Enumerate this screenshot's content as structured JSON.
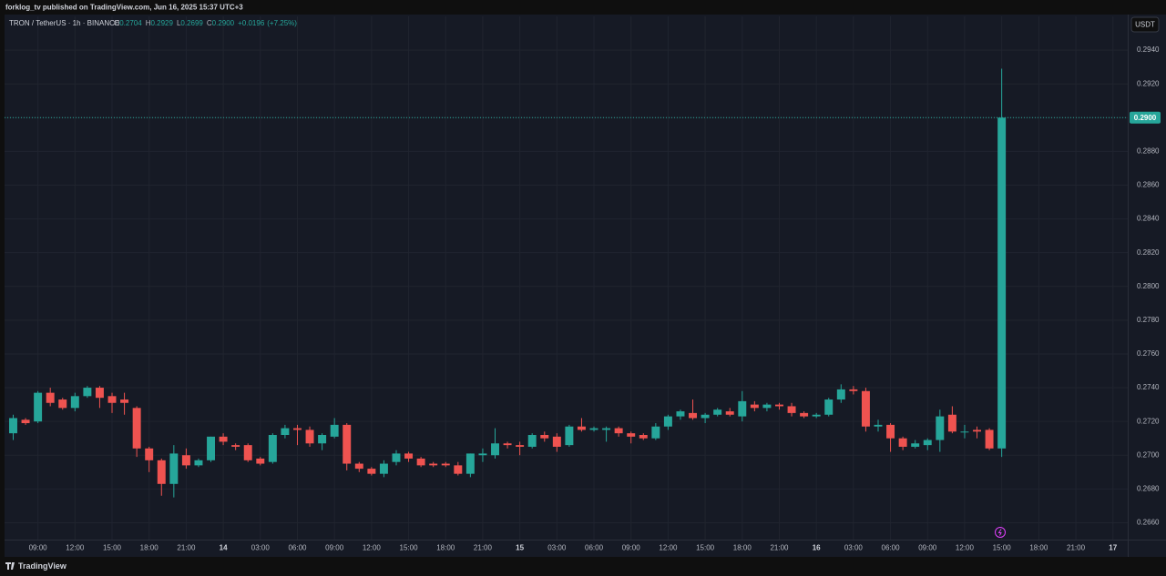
{
  "header": {
    "published": "forklog_tv published on TradingView.com, Jun 16, 2025 15:37 UTC+3"
  },
  "footer": {
    "brand": "TradingView"
  },
  "chart_data": {
    "type": "candlestick",
    "title": "TRON / TetherUS · 1h · BINANCE",
    "currency": "USDT",
    "legend": {
      "open_label": "O",
      "open": "0.2704",
      "high_label": "H",
      "high": "0.2929",
      "low_label": "L",
      "low": "0.2699",
      "close_label": "C",
      "close": "0.2900",
      "change": "+0.0196",
      "change_percent": "(+7.25%)"
    },
    "up_color": "#26a69a",
    "down_color": "#ef5350",
    "grid": true,
    "x": [
      -17,
      -16,
      -15,
      -14,
      -13,
      -12,
      -11,
      -10,
      -9,
      -8,
      -7,
      -6,
      -5,
      -4,
      -3,
      -2,
      -1,
      0,
      1,
      2,
      3,
      4,
      5,
      6,
      7,
      8,
      9,
      10,
      11,
      12,
      13,
      14,
      15,
      16,
      17,
      18,
      19,
      20,
      21,
      22,
      23,
      24,
      25,
      26,
      27,
      28,
      29,
      30,
      31,
      32,
      33,
      34,
      35,
      36,
      37,
      38,
      39,
      40,
      41,
      42,
      43,
      44,
      45,
      46,
      47,
      48,
      49,
      50,
      51,
      52,
      53,
      54,
      55,
      56,
      57,
      58,
      59,
      60,
      61,
      62,
      63
    ],
    "open": [
      0.2713,
      0.2721,
      0.272,
      0.2737,
      0.2733,
      0.2728,
      0.2735,
      0.274,
      0.2735,
      0.2733,
      0.2728,
      0.2704,
      0.2697,
      0.2683,
      0.27,
      0.2694,
      0.2697,
      0.2711,
      0.2706,
      0.2706,
      0.2698,
      0.2696,
      0.2712,
      0.2716,
      0.2715,
      0.2707,
      0.2711,
      0.2718,
      0.2695,
      0.2692,
      0.2689,
      0.2696,
      0.2701,
      0.2698,
      0.2695,
      0.2695,
      0.2694,
      0.2689,
      0.27,
      0.27,
      0.2707,
      0.2706,
      0.2705,
      0.2712,
      0.2711,
      0.2706,
      0.2717,
      0.2715,
      0.2715,
      0.2716,
      0.2713,
      0.2712,
      0.271,
      0.2717,
      0.2723,
      0.2725,
      0.2722,
      0.2724,
      0.2726,
      0.2723,
      0.273,
      0.2728,
      0.273,
      0.2729,
      0.2725,
      0.2723,
      0.2724,
      0.2733,
      0.2739,
      0.2738,
      0.2717,
      0.2718,
      0.271,
      0.2705,
      0.2706,
      0.2709,
      0.2724,
      0.2714,
      0.2715,
      0.2715,
      0.2704
    ],
    "high": [
      0.2724,
      0.2722,
      0.2738,
      0.274,
      0.2734,
      0.2737,
      0.2741,
      0.2741,
      0.2737,
      0.2737,
      0.2729,
      0.2705,
      0.2698,
      0.2706,
      0.2704,
      0.2698,
      0.2711,
      0.2713,
      0.2707,
      0.2707,
      0.2699,
      0.2713,
      0.2718,
      0.2718,
      0.2717,
      0.2713,
      0.2722,
      0.2719,
      0.2696,
      0.2693,
      0.2697,
      0.2703,
      0.2702,
      0.2699,
      0.2696,
      0.2696,
      0.2696,
      0.2701,
      0.2704,
      0.2716,
      0.2708,
      0.2708,
      0.2713,
      0.2714,
      0.2713,
      0.2718,
      0.2722,
      0.2717,
      0.2717,
      0.2717,
      0.2714,
      0.2713,
      0.2719,
      0.2724,
      0.2727,
      0.2733,
      0.2725,
      0.2728,
      0.2728,
      0.2738,
      0.2732,
      0.2731,
      0.2731,
      0.2731,
      0.2726,
      0.2725,
      0.2734,
      0.2742,
      0.2741,
      0.274,
      0.2721,
      0.2719,
      0.2711,
      0.2709,
      0.271,
      0.2727,
      0.2729,
      0.2718,
      0.2717,
      0.2716,
      0.2929
    ],
    "low": [
      0.2709,
      0.2718,
      0.2719,
      0.2729,
      0.2727,
      0.2726,
      0.2734,
      0.2728,
      0.2725,
      0.2724,
      0.2699,
      0.269,
      0.2676,
      0.2675,
      0.2692,
      0.2693,
      0.2696,
      0.2706,
      0.2703,
      0.2696,
      0.2694,
      0.2695,
      0.271,
      0.2706,
      0.2705,
      0.2703,
      0.271,
      0.2691,
      0.269,
      0.2688,
      0.2687,
      0.2694,
      0.2696,
      0.2693,
      0.2693,
      0.2693,
      0.2688,
      0.2687,
      0.2696,
      0.2698,
      0.2704,
      0.27,
      0.2704,
      0.2708,
      0.2702,
      0.2705,
      0.2714,
      0.2714,
      0.2708,
      0.2711,
      0.2707,
      0.2709,
      0.2709,
      0.2715,
      0.2721,
      0.2721,
      0.2719,
      0.2723,
      0.2723,
      0.272,
      0.2726,
      0.2726,
      0.2727,
      0.2723,
      0.2722,
      0.2722,
      0.2723,
      0.2731,
      0.2736,
      0.2714,
      0.2714,
      0.2702,
      0.2703,
      0.2704,
      0.2703,
      0.2702,
      0.2713,
      0.271,
      0.271,
      0.2703,
      0.2699
    ],
    "close": [
      0.2722,
      0.2719,
      0.2737,
      0.2731,
      0.2728,
      0.2735,
      0.274,
      0.2734,
      0.2731,
      0.2731,
      0.2704,
      0.2697,
      0.2683,
      0.2701,
      0.2694,
      0.2697,
      0.2711,
      0.2708,
      0.2705,
      0.2697,
      0.2695,
      0.2712,
      0.2716,
      0.2715,
      0.2707,
      0.2712,
      0.2718,
      0.2695,
      0.2692,
      0.2689,
      0.2695,
      0.2701,
      0.2698,
      0.2694,
      0.2694,
      0.2694,
      0.2689,
      0.2701,
      0.2701,
      0.2707,
      0.2706,
      0.2705,
      0.2712,
      0.271,
      0.2705,
      0.2717,
      0.2715,
      0.2716,
      0.2716,
      0.2713,
      0.2711,
      0.271,
      0.2717,
      0.2723,
      0.2726,
      0.2722,
      0.2724,
      0.2727,
      0.2724,
      0.2732,
      0.2728,
      0.273,
      0.2729,
      0.2725,
      0.2723,
      0.2724,
      0.2733,
      0.2739,
      0.2738,
      0.2717,
      0.2718,
      0.271,
      0.2705,
      0.2707,
      0.2709,
      0.2723,
      0.2714,
      0.2714,
      0.2714,
      0.2704,
      0.29
    ],
    "last_price": {
      "value": 0.29,
      "label": "0.2900"
    },
    "xlim": [
      -17.7,
      73.2
    ],
    "xticks": [
      {
        "value": -15,
        "label": "09:00"
      },
      {
        "value": -12,
        "label": "12:00"
      },
      {
        "value": -9,
        "label": "15:00"
      },
      {
        "value": -6,
        "label": "18:00"
      },
      {
        "value": -3,
        "label": "21:00"
      },
      {
        "value": 0,
        "label": "14"
      },
      {
        "value": 3,
        "label": "03:00"
      },
      {
        "value": 6,
        "label": "06:00"
      },
      {
        "value": 9,
        "label": "09:00"
      },
      {
        "value": 12,
        "label": "12:00"
      },
      {
        "value": 15,
        "label": "15:00"
      },
      {
        "value": 18,
        "label": "18:00"
      },
      {
        "value": 21,
        "label": "21:00"
      },
      {
        "value": 24,
        "label": "15"
      },
      {
        "value": 27,
        "label": "03:00"
      },
      {
        "value": 30,
        "label": "06:00"
      },
      {
        "value": 33,
        "label": "09:00"
      },
      {
        "value": 36,
        "label": "12:00"
      },
      {
        "value": 39,
        "label": "15:00"
      },
      {
        "value": 42,
        "label": "18:00"
      },
      {
        "value": 45,
        "label": "21:00"
      },
      {
        "value": 48,
        "label": "16"
      },
      {
        "value": 51,
        "label": "03:00"
      },
      {
        "value": 54,
        "label": "06:00"
      },
      {
        "value": 57,
        "label": "09:00"
      },
      {
        "value": 60,
        "label": "12:00"
      },
      {
        "value": 63,
        "label": "15:00"
      },
      {
        "value": 66,
        "label": "18:00"
      },
      {
        "value": 69,
        "label": "21:00"
      },
      {
        "value": 72,
        "label": "17"
      }
    ],
    "ylim": [
      0.265,
      0.296
    ],
    "yticks": [
      {
        "value": 0.266,
        "label": "0.2660"
      },
      {
        "value": 0.268,
        "label": "0.2680"
      },
      {
        "value": 0.27,
        "label": "0.2700"
      },
      {
        "value": 0.272,
        "label": "0.2720"
      },
      {
        "value": 0.274,
        "label": "0.2740"
      },
      {
        "value": 0.276,
        "label": "0.2760"
      },
      {
        "value": 0.278,
        "label": "0.2780"
      },
      {
        "value": 0.28,
        "label": "0.2800"
      },
      {
        "value": 0.282,
        "label": "0.2820"
      },
      {
        "value": 0.284,
        "label": "0.2840"
      },
      {
        "value": 0.286,
        "label": "0.2860"
      },
      {
        "value": 0.288,
        "label": "0.2880"
      },
      {
        "value": 0.29,
        "label": "0.2900"
      },
      {
        "value": 0.292,
        "label": "0.2920"
      },
      {
        "value": 0.294,
        "label": "0.2940"
      }
    ]
  }
}
